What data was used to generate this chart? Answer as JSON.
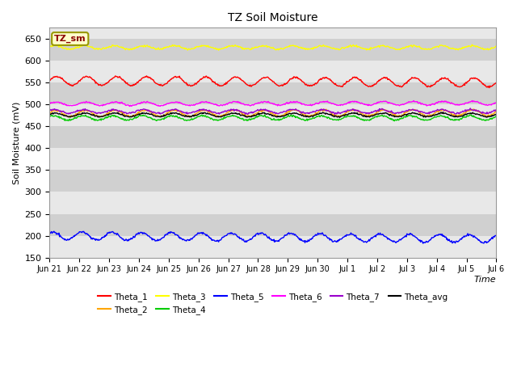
{
  "title": "TZ Soil Moisture",
  "xlabel": "Time",
  "ylabel": "Soil Moisture (mV)",
  "ylim": [
    150,
    675
  ],
  "yticks": [
    150,
    200,
    250,
    300,
    350,
    400,
    450,
    500,
    550,
    600,
    650
  ],
  "background_color": "#d8d8d8",
  "series_order": [
    "Theta_1",
    "Theta_2",
    "Theta_3",
    "Theta_4",
    "Theta_5",
    "Theta_6",
    "Theta_7",
    "Theta_avg"
  ],
  "series": {
    "Theta_1": {
      "color": "#ff0000"
    },
    "Theta_2": {
      "color": "#ffa500"
    },
    "Theta_3": {
      "color": "#ffff00"
    },
    "Theta_4": {
      "color": "#00cc00"
    },
    "Theta_5": {
      "color": "#0000ff"
    },
    "Theta_6": {
      "color": "#ff00ff"
    },
    "Theta_7": {
      "color": "#9900cc"
    },
    "Theta_avg": {
      "color": "#000000"
    }
  },
  "xtick_labels": [
    "Jun 21",
    "Jun 22",
    "Jun 23",
    "Jun 24",
    "Jun 25",
    "Jun 26",
    "Jun 27",
    "Jun 28",
    "Jun 29",
    "Jun 30",
    "Jul 1",
    "Jul 2",
    "Jul 3",
    "Jul 4",
    "Jul 5",
    "Jul 6"
  ],
  "num_days": 15,
  "legend_box_label": "TZ_sm",
  "band_colors": [
    "#e8e8e8",
    "#d0d0d0"
  ]
}
